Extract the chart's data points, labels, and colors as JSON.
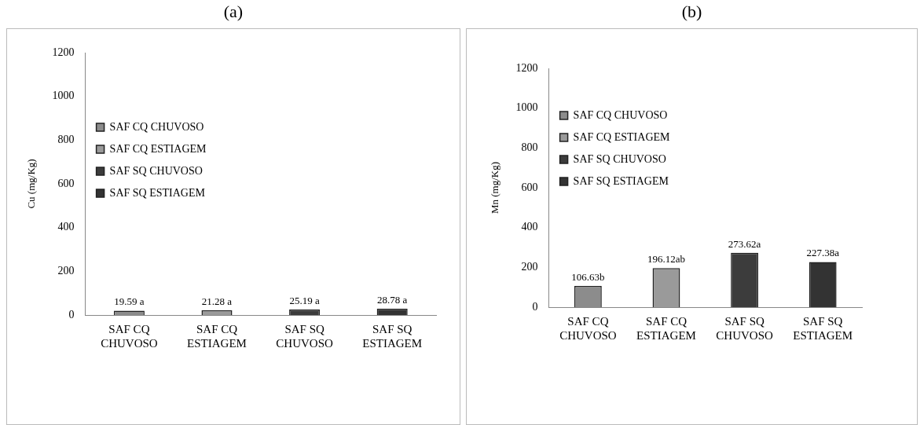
{
  "chart_data": [
    {
      "type": "bar",
      "title": "(a)",
      "ylabel": "Cu (mg/Kg)",
      "categories": [
        "SAF CQ CHUVOSO",
        "SAF CQ ESTIAGEM",
        "SAF SQ CHUVOSO",
        "SAF SQ ESTIAGEM"
      ],
      "series": [
        {
          "name": "SAF CQ CHUVOSO",
          "color": "#8c8c8c",
          "values": [
            19.59,
            null,
            null,
            null
          ],
          "value_labels": [
            "19.59 a",
            null,
            null,
            null
          ]
        },
        {
          "name": "SAF CQ ESTIAGEM",
          "color": "#9a9a9a",
          "values": [
            null,
            21.28,
            null,
            null
          ],
          "value_labels": [
            null,
            "21.28 a",
            null,
            null
          ]
        },
        {
          "name": "SAF SQ CHUVOSO",
          "color": "#3c3c3c",
          "values": [
            null,
            null,
            25.19,
            null
          ],
          "value_labels": [
            null,
            null,
            "25.19 a",
            null
          ]
        },
        {
          "name": "SAF SQ ESTIAGEM",
          "color": "#333333",
          "values": [
            null,
            null,
            null,
            28.78
          ],
          "value_labels": [
            null,
            null,
            null,
            "28.78 a"
          ]
        }
      ],
      "ylim": [
        0,
        1200
      ],
      "yticks": [
        0,
        200,
        400,
        600,
        800,
        1000,
        1200
      ],
      "grid": false,
      "legend": "top"
    },
    {
      "type": "bar",
      "title": "(b)",
      "ylabel": "Mn (mg/Kg)",
      "categories": [
        "SAF CQ CHUVOSO",
        "SAF CQ ESTIAGEM",
        "SAF SQ CHUVOSO",
        "SAF SQ ESTIAGEM"
      ],
      "series": [
        {
          "name": "SAF CQ CHUVOSO",
          "color": "#8c8c8c",
          "values": [
            106.63,
            null,
            null,
            null
          ],
          "value_labels": [
            "106.63b",
            null,
            null,
            null
          ]
        },
        {
          "name": "SAF CQ ESTIAGEM",
          "color": "#9a9a9a",
          "values": [
            null,
            196.12,
            null,
            null
          ],
          "value_labels": [
            null,
            "196.12ab",
            null,
            null
          ]
        },
        {
          "name": "SAF SQ CHUVOSO",
          "color": "#3c3c3c",
          "values": [
            null,
            null,
            273.62,
            null
          ],
          "value_labels": [
            null,
            null,
            "273.62a",
            null
          ]
        },
        {
          "name": "SAF SQ ESTIAGEM",
          "color": "#333333",
          "values": [
            null,
            null,
            null,
            227.38
          ],
          "value_labels": [
            null,
            null,
            null,
            "227.38a"
          ]
        }
      ],
      "ylim": [
        0,
        1200
      ],
      "yticks": [
        0,
        200,
        400,
        600,
        800,
        1000,
        1200
      ],
      "grid": false,
      "legend": "top"
    }
  ]
}
